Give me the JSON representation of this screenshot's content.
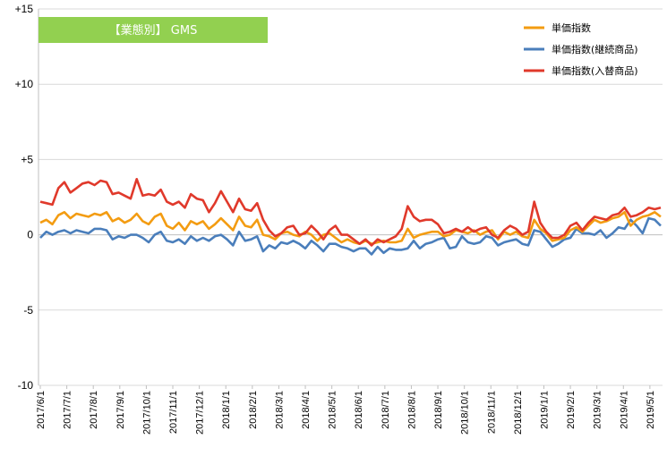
{
  "chart_data": {
    "type": "line",
    "title": "【業態別】 GMS",
    "title_box_color": "#92d050",
    "ylim": [
      -10,
      15
    ],
    "y_ticks": [
      "+15",
      "+10",
      "+5",
      "0",
      "-5",
      "-10"
    ],
    "y_tick_values": [
      15,
      10,
      5,
      0,
      -5,
      -10
    ],
    "grid": true,
    "legend_position": "top-right",
    "x_labels": [
      "2017/6/1",
      "2017/7/1",
      "2017/8/1",
      "2017/9/1",
      "2017/10/1",
      "2017/11/1",
      "2017/12/1",
      "2018/1/1",
      "2018/2/1",
      "2018/3/1",
      "2018/4/1",
      "2018/5/1",
      "2018/6/1",
      "2018/7/1",
      "2018/8/1",
      "2018/9/1",
      "2018/10/1",
      "2018/11/1",
      "2018/12/1",
      "2019/1/1",
      "2019/2/1",
      "2019/3/1",
      "2019/4/1",
      "2019/5/1"
    ],
    "x_label_positions": [
      0,
      4.4,
      8.8,
      13.2,
      17.6,
      22,
      26.4,
      30.8,
      35.2,
      39.6,
      44,
      48.4,
      52.8,
      57.2,
      61.6,
      66,
      70.4,
      74.8,
      79.2,
      83.6,
      88,
      92.4,
      96.8,
      101.2
    ],
    "x_count": 104,
    "series": [
      {
        "name": "単価指数",
        "color": "#f39c12",
        "values": [
          0.8,
          1.0,
          0.7,
          1.3,
          1.5,
          1.1,
          1.4,
          1.3,
          1.2,
          1.4,
          1.3,
          1.5,
          0.9,
          1.1,
          0.8,
          1.0,
          1.4,
          0.9,
          0.7,
          1.2,
          1.4,
          0.6,
          0.4,
          0.8,
          0.3,
          0.9,
          0.7,
          0.9,
          0.4,
          0.7,
          1.1,
          0.7,
          0.3,
          1.2,
          0.6,
          0.5,
          1.0,
          0.0,
          -0.1,
          -0.3,
          0.1,
          0.2,
          0.0,
          -0.1,
          0.2,
          0.0,
          -0.4,
          0.0,
          0.1,
          -0.2,
          -0.5,
          -0.3,
          -0.5,
          -0.6,
          -0.4,
          -0.6,
          -0.5,
          -0.4,
          -0.5,
          -0.5,
          -0.4,
          0.4,
          -0.2,
          0.0,
          0.1,
          0.2,
          0.2,
          -0.1,
          0.0,
          0.3,
          0.2,
          0.1,
          0.3,
          0.0,
          0.2,
          0.3,
          -0.3,
          0.2,
          0.0,
          0.2,
          -0.1,
          -0.2,
          1.0,
          0.4,
          0.1,
          -0.4,
          -0.3,
          -0.2,
          0.3,
          0.5,
          0.2,
          0.6,
          1.0,
          0.8,
          0.9,
          1.1,
          1.2,
          1.5,
          0.6,
          1.0,
          1.2,
          1.3,
          1.5,
          1.2
        ]
      },
      {
        "name": "単価指数(継続商品)",
        "color": "#4a7ebb",
        "values": [
          -0.2,
          0.2,
          0.0,
          0.2,
          0.3,
          0.1,
          0.3,
          0.2,
          0.1,
          0.4,
          0.4,
          0.3,
          -0.3,
          -0.1,
          -0.2,
          0.0,
          0.0,
          -0.2,
          -0.5,
          0.0,
          0.2,
          -0.4,
          -0.5,
          -0.3,
          -0.6,
          -0.1,
          -0.4,
          -0.2,
          -0.4,
          -0.1,
          0.0,
          -0.3,
          -0.7,
          0.2,
          -0.4,
          -0.3,
          -0.1,
          -1.1,
          -0.7,
          -0.9,
          -0.5,
          -0.6,
          -0.4,
          -0.6,
          -0.9,
          -0.4,
          -0.7,
          -1.1,
          -0.6,
          -0.6,
          -0.8,
          -0.9,
          -1.1,
          -0.9,
          -0.9,
          -1.3,
          -0.8,
          -1.2,
          -0.9,
          -1.0,
          -1.0,
          -0.9,
          -0.4,
          -0.9,
          -0.6,
          -0.5,
          -0.3,
          -0.2,
          -0.9,
          -0.8,
          -0.1,
          -0.5,
          -0.6,
          -0.5,
          -0.1,
          -0.2,
          -0.7,
          -0.5,
          -0.4,
          -0.3,
          -0.6,
          -0.7,
          0.3,
          0.2,
          -0.3,
          -0.8,
          -0.6,
          -0.3,
          -0.2,
          0.4,
          0.1,
          0.1,
          0.0,
          0.3,
          -0.2,
          0.1,
          0.5,
          0.4,
          1.0,
          0.6,
          0.1,
          1.1,
          1.0,
          0.6
        ]
      },
      {
        "name": "単価指数(入替商品)",
        "color": "#e0392b",
        "values": [
          2.2,
          2.1,
          2.0,
          3.1,
          3.5,
          2.8,
          3.1,
          3.4,
          3.5,
          3.3,
          3.6,
          3.5,
          2.7,
          2.8,
          2.6,
          2.4,
          3.7,
          2.6,
          2.7,
          2.6,
          3.0,
          2.2,
          2.0,
          2.2,
          1.8,
          2.7,
          2.4,
          2.3,
          1.5,
          2.1,
          2.9,
          2.2,
          1.5,
          2.4,
          1.7,
          1.6,
          2.1,
          1.0,
          0.3,
          -0.1,
          0.1,
          0.5,
          0.6,
          0.0,
          0.1,
          0.6,
          0.2,
          -0.3,
          0.3,
          0.6,
          0.0,
          0.0,
          -0.3,
          -0.6,
          -0.3,
          -0.7,
          -0.3,
          -0.5,
          -0.3,
          -0.1,
          0.4,
          1.9,
          1.2,
          0.9,
          1.0,
          1.0,
          0.7,
          0.1,
          0.2,
          0.4,
          0.2,
          0.5,
          0.2,
          0.4,
          0.5,
          0.0,
          -0.2,
          0.3,
          0.6,
          0.4,
          0.0,
          0.2,
          2.2,
          0.8,
          0.2,
          -0.2,
          -0.2,
          0.0,
          0.6,
          0.8,
          0.3,
          0.8,
          1.2,
          1.1,
          1.0,
          1.3,
          1.4,
          1.8,
          1.2,
          1.3,
          1.5,
          1.8,
          1.7,
          1.8
        ]
      }
    ]
  }
}
